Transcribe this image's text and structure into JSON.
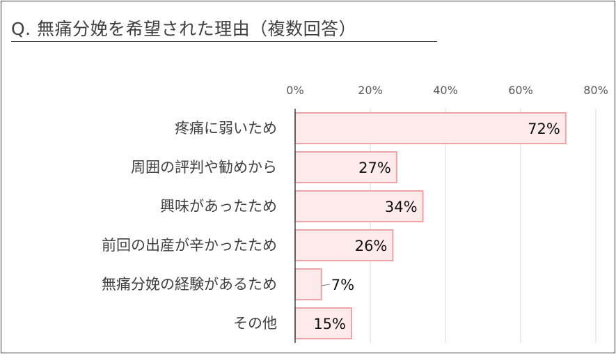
{
  "title": "Q. 無痛分娩を希望された理由（複数回答）",
  "chart_data": {
    "type": "bar",
    "orientation": "horizontal",
    "categories": [
      "疼痛に弱いため",
      "周囲の評判や勧めから",
      "興味があったため",
      "前回の出産が辛かったため",
      "無痛分娩の経験があるため",
      "その他"
    ],
    "values": [
      72,
      27,
      34,
      26,
      7,
      15
    ],
    "data_labels": [
      "72%",
      "27%",
      "34%",
      "26%",
      "7%",
      "15%"
    ],
    "xlim": [
      0,
      80
    ],
    "xticks": [
      "0%",
      "20%",
      "40%",
      "60%",
      "80%"
    ],
    "tick_values": [
      0,
      20,
      40,
      60,
      80
    ],
    "grid": true,
    "colors": {
      "bar_fill": "#fdeaea",
      "bar_stroke": "#f0a3a3",
      "grid": "#d9d9d9",
      "axis": "#404040"
    }
  }
}
